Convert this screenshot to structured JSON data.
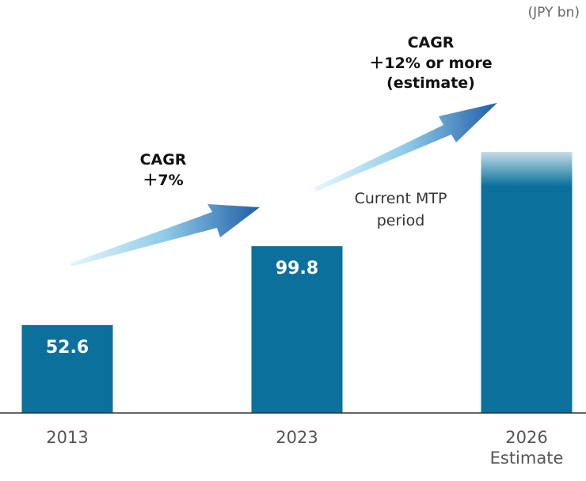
{
  "chart_data": {
    "type": "bar",
    "unit": "(JPY bn)",
    "categories": [
      "2013",
      "2023",
      "2026\nEstimate"
    ],
    "values": [
      52.6,
      99.8,
      156
    ],
    "value_labels": [
      "52.6",
      "99.8",
      null
    ],
    "color": "#0b719c",
    "fade_top": [
      false,
      false,
      true
    ],
    "annotations": [
      "CAGR\n＋7%",
      "CAGR\n＋12% or more\n(estimate)",
      "Current MTP\nperiod"
    ]
  }
}
